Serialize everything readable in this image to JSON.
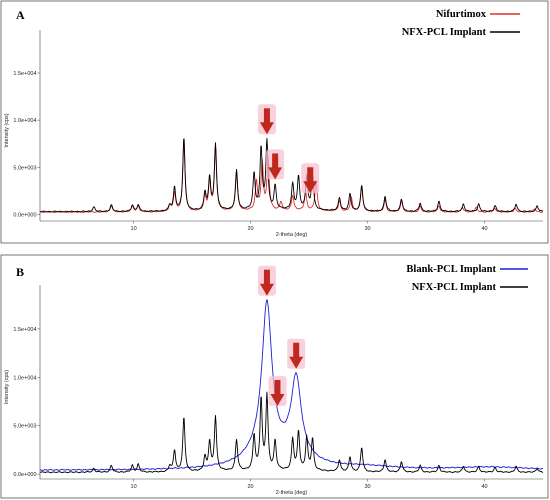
{
  "chart_data": [
    {
      "panel": "A",
      "type": "line",
      "xlabel": "2-theta (deg)",
      "ylabel": "Intensity (cps)",
      "xlim": [
        2,
        45
      ],
      "ylim": [
        -700,
        18500
      ],
      "xticks": [
        10,
        20,
        30,
        40
      ],
      "yticks": [
        0,
        5000,
        10000,
        15000
      ],
      "xtick_labels": [
        "10",
        "20",
        "30",
        "40"
      ],
      "ytick_labels": [
        "0.0e+000",
        "5.0e+003",
        "1.0e+004",
        "1.5e+004"
      ],
      "legend_position": "top-right",
      "series": [
        {
          "name": "Nifurtimox",
          "color": "#e0312a",
          "baseline": 250,
          "peaks": [
            [
              8.1,
              700
            ],
            [
              9.9,
              650
            ],
            [
              10.4,
              700
            ],
            [
              13.1,
              650
            ],
            [
              13.5,
              2000
            ],
            [
              14.3,
              7600
            ],
            [
              16.1,
              1600
            ],
            [
              16.5,
              3100
            ],
            [
              17.0,
              6800
            ],
            [
              18.8,
              4000
            ],
            [
              20.5,
              3000
            ],
            [
              21.0,
              5000
            ],
            [
              21.5,
              5500
            ],
            [
              22.6,
              900
            ],
            [
              23.6,
              1600
            ],
            [
              24.7,
              2000
            ],
            [
              25.6,
              3200
            ],
            [
              27.6,
              1100
            ],
            [
              28.6,
              1500
            ],
            [
              29.5,
              2700
            ],
            [
              31.5,
              1300
            ],
            [
              32.9,
              1200
            ],
            [
              34.5,
              600
            ],
            [
              36.1,
              700
            ],
            [
              38.1,
              500
            ],
            [
              39.3,
              500
            ],
            [
              40.9,
              400
            ],
            [
              42.6,
              400
            ],
            [
              44.3,
              350
            ]
          ]
        },
        {
          "name": "NFX-PCL Implant",
          "color": "#000000",
          "baseline": 300,
          "peaks": [
            [
              6.6,
              500
            ],
            [
              8.1,
              700
            ],
            [
              9.9,
              700
            ],
            [
              10.4,
              700
            ],
            [
              13.1,
              600
            ],
            [
              13.5,
              2500
            ],
            [
              14.3,
              7800
            ],
            [
              16.1,
              1900
            ],
            [
              16.5,
              3400
            ],
            [
              17.0,
              7000
            ],
            [
              18.8,
              4200
            ],
            [
              20.3,
              3800
            ],
            [
              20.9,
              6500
            ],
            [
              21.4,
              7200
            ],
            [
              22.1,
              2500
            ],
            [
              23.6,
              2700
            ],
            [
              24.1,
              3500
            ],
            [
              24.8,
              3500
            ],
            [
              25.3,
              3800
            ],
            [
              27.6,
              1400
            ],
            [
              28.5,
              1800
            ],
            [
              29.5,
              2700
            ],
            [
              31.5,
              1600
            ],
            [
              32.9,
              1300
            ],
            [
              34.5,
              900
            ],
            [
              36.1,
              1100
            ],
            [
              38.2,
              800
            ],
            [
              39.5,
              800
            ],
            [
              40.9,
              650
            ],
            [
              42.7,
              800
            ],
            [
              44.5,
              600
            ]
          ]
        }
      ],
      "arrows_at_x": [
        21.4,
        22.1,
        25.1
      ],
      "arrow_color": "#c0281e"
    },
    {
      "panel": "B",
      "type": "line",
      "xlabel": "2-theta (deg)",
      "ylabel": "Intensity (cps)",
      "xlim": [
        2,
        45
      ],
      "ylim": [
        -500,
        18500
      ],
      "xticks": [
        10,
        20,
        30,
        40
      ],
      "yticks": [
        0,
        5000,
        10000,
        15000
      ],
      "xtick_labels": [
        "10",
        "20",
        "30",
        "40"
      ],
      "ytick_labels": [
        "0.0e+000",
        "5.0e+003",
        "1.0e+004",
        "1.5e+004"
      ],
      "legend_position": "top-right",
      "series": [
        {
          "name": "Blank-PCL Implant",
          "color": "#1f1fd6",
          "baseline": 400,
          "broad": [
            [
              21.4,
              15000,
              0.5
            ],
            [
              21.2,
              1800,
              1.6
            ],
            [
              23.9,
              7600,
              0.5
            ],
            [
              23.8,
              1200,
              1.4
            ],
            [
              30.0,
              300,
              3.0
            ],
            [
              40.5,
              300,
              4.0
            ]
          ]
        },
        {
          "name": "NFX-PCL Implant",
          "color": "#000000",
          "baseline": 200,
          "peaks": [
            [
              6.6,
              400
            ],
            [
              8.1,
              700
            ],
            [
              9.9,
              700
            ],
            [
              10.4,
              800
            ],
            [
              13.1,
              600
            ],
            [
              13.5,
              2200
            ],
            [
              14.3,
              5600
            ],
            [
              16.1,
              1500
            ],
            [
              16.5,
              3000
            ],
            [
              17.0,
              5600
            ],
            [
              18.8,
              3200
            ],
            [
              20.3,
              3600
            ],
            [
              20.9,
              7300
            ],
            [
              21.4,
              7600
            ],
            [
              22.1,
              3000
            ],
            [
              23.6,
              3200
            ],
            [
              24.1,
              4000
            ],
            [
              24.8,
              3400
            ],
            [
              25.3,
              3300
            ],
            [
              27.6,
              1200
            ],
            [
              28.5,
              1500
            ],
            [
              29.5,
              2500
            ],
            [
              31.5,
              1300
            ],
            [
              32.9,
              1100
            ],
            [
              34.5,
              700
            ],
            [
              36.1,
              700
            ],
            [
              38.2,
              600
            ],
            [
              39.5,
              600
            ],
            [
              40.9,
              500
            ],
            [
              42.7,
              600
            ],
            [
              44.5,
              400
            ]
          ]
        }
      ],
      "arrows_at_x": [
        21.4,
        22.3,
        23.9
      ],
      "arrow_color": "#c0281e"
    }
  ]
}
